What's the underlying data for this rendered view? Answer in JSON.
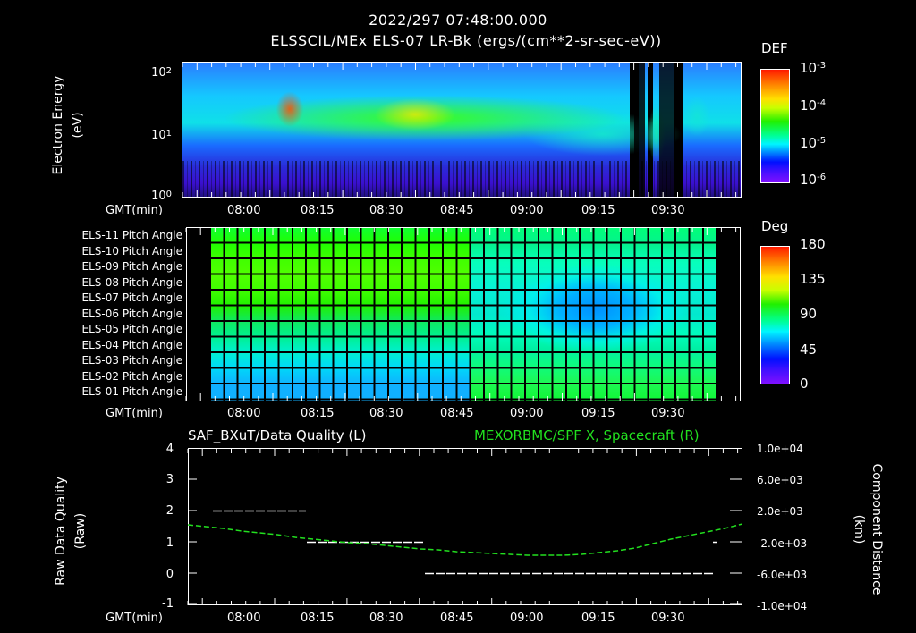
{
  "header": {
    "timestamp": "2022/297 07:48:00.000",
    "subtitle": "ELSSCIL/MEx ELS-07 LR-Bk  (ergs/(cm**2-sr-sec-eV))"
  },
  "x_axis": {
    "label": "GMT(min)",
    "ticks": [
      "08:00",
      "08:15",
      "08:30",
      "08:45",
      "09:00",
      "09:15",
      "09:30"
    ],
    "range_start": "07:48",
    "range_end": "09:43"
  },
  "panel1": {
    "ylabel_line1": "Electron Energy",
    "ylabel_line2": "(eV)",
    "yticks": [
      {
        "base": "10",
        "exp": "2"
      },
      {
        "base": "10",
        "exp": "1"
      },
      {
        "base": "10",
        "exp": "0"
      }
    ],
    "colorbar": {
      "title": "DEF",
      "labels": [
        {
          "base": "10",
          "exp": "-3"
        },
        {
          "base": "10",
          "exp": "-4"
        },
        {
          "base": "10",
          "exp": "-5"
        },
        {
          "base": "10",
          "exp": "-6"
        }
      ]
    }
  },
  "panel2": {
    "rows": [
      "ELS-11 Pitch Angle",
      "ELS-10 Pitch Angle",
      "ELS-09 Pitch Angle",
      "ELS-08 Pitch Angle",
      "ELS-07 Pitch Angle",
      "ELS-06 Pitch Angle",
      "ELS-05 Pitch Angle",
      "ELS-04 Pitch Angle",
      "ELS-03 Pitch Angle",
      "ELS-02 Pitch Angle",
      "ELS-01 Pitch Angle"
    ],
    "colorbar": {
      "title": "Deg",
      "labels": [
        "180",
        "135",
        "90",
        "45",
        "0"
      ]
    }
  },
  "panel3": {
    "left_title": "SAF_BXuT/Data Quality (L)",
    "right_title": "MEXORBMC/SPF X, Spacecraft (R)",
    "ylabel_left_line1": "Raw Data Quality",
    "ylabel_left_line2": "(Raw)",
    "ylabel_right_line1": "Component Distance",
    "ylabel_right_line2": "(km)",
    "left_ticks": [
      "4",
      "3",
      "2",
      "1",
      "0",
      "-1"
    ],
    "right_ticks": [
      "1.0e+04",
      "6.0e+03",
      "2.0e+03",
      "-2.0e+03",
      "-6.0e+03",
      "-1.0e+04"
    ]
  },
  "chart_data": [
    {
      "type": "heatmap",
      "title": "ELSSCIL/MEx ELS-07 LR-Bk (ergs/(cm**2-sr-sec-eV))",
      "xlabel": "GMT(min)",
      "ylabel": "Electron Energy (eV)",
      "x_ticks": [
        "08:00",
        "08:15",
        "08:30",
        "08:45",
        "09:00",
        "09:15",
        "09:30"
      ],
      "y_scale": "log",
      "ylim": [
        1,
        150
      ],
      "colorbar": {
        "label": "DEF",
        "scale": "log",
        "range": [
          1e-06,
          0.001
        ]
      },
      "features": [
        {
          "time": "07:48-08:52",
          "energy_eV": "10-60",
          "level": "1e-5 to 3e-4",
          "peak_time": "08:09",
          "peak_level": "~5e-4"
        },
        {
          "time": "08:57-09:22",
          "energy_eV": "5-30",
          "level": "~1e-5 to 3e-5"
        },
        {
          "time": "09:23-09:26",
          "energy_eV": "3-150",
          "level": "data gap / black"
        },
        {
          "time": "09:30-09:33",
          "energy_eV": "all",
          "level": "data gap / black"
        }
      ]
    },
    {
      "type": "heatmap",
      "title": "Pitch Angle",
      "xlabel": "GMT(min)",
      "categories": [
        "ELS-11",
        "ELS-10",
        "ELS-09",
        "ELS-08",
        "ELS-07",
        "ELS-06",
        "ELS-05",
        "ELS-04",
        "ELS-03",
        "ELS-02",
        "ELS-01"
      ],
      "colorbar": {
        "label": "Deg",
        "range": [
          0,
          180
        ],
        "ticks": [
          0,
          45,
          90,
          135,
          180
        ]
      },
      "time_columns": 37,
      "time_range": [
        "07:53",
        "09:40"
      ],
      "approx_values_deg": {
        "early_period_07:53-08:50": [
          100,
          110,
          115,
          118,
          115,
          105,
          95,
          85,
          70,
          60,
          55
        ],
        "late_period_09:05-09:20": [
          85,
          75,
          60,
          45,
          40,
          45,
          60,
          75,
          90,
          100,
          105
        ]
      }
    },
    {
      "type": "line",
      "title": "SAF_BXuT/Data Quality (L) ; MEXORBMC/SPF X, Spacecraft (R)",
      "xlabel": "GMT(min)",
      "series": [
        {
          "name": "Data Quality (L)",
          "axis": "left",
          "ylim": [
            -1,
            4
          ],
          "segments": [
            {
              "start": "07:53",
              "end": "08:13",
              "value": 2
            },
            {
              "start": "08:13",
              "end": "08:38",
              "value": 1
            },
            {
              "start": "08:38",
              "end": "09:40",
              "value": 0
            },
            {
              "start": "09:40",
              "end": "09:41",
              "value": 1
            }
          ]
        },
        {
          "name": "SPF X, Spacecraft (R)",
          "axis": "right",
          "unit": "km",
          "ylim": [
            -10000,
            10000
          ],
          "x": [
            "07:48",
            "08:00",
            "08:15",
            "08:30",
            "08:45",
            "09:00",
            "09:15",
            "09:30",
            "09:43"
          ],
          "values": [
            1000,
            200,
            -800,
            -1600,
            -2300,
            -2600,
            -2000,
            0,
            1500
          ]
        }
      ],
      "right_ticks": [
        "1.0e+04",
        "6.0e+03",
        "2.0e+03",
        "-2.0e+03",
        "-6.0e+03",
        "-1.0e+04"
      ],
      "left_ticks": [
        4,
        3,
        2,
        1,
        0,
        -1
      ]
    }
  ]
}
